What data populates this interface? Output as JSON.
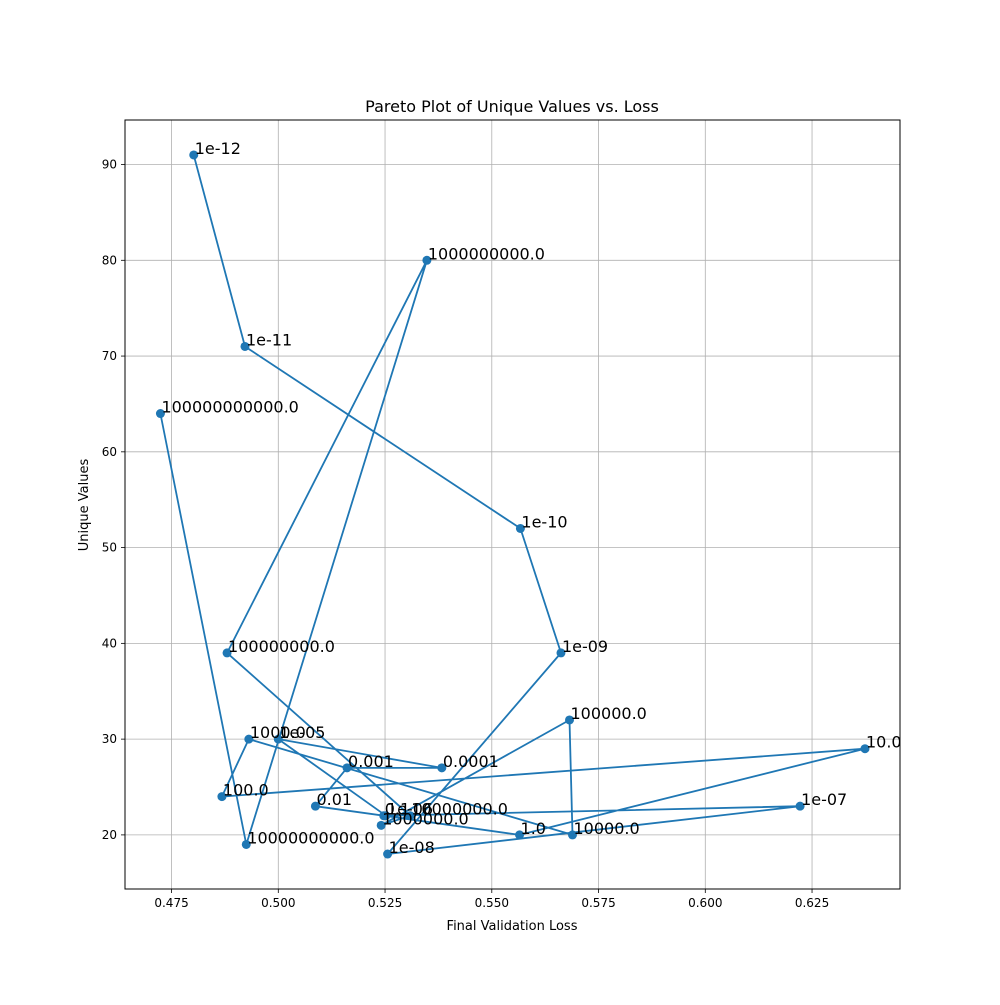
{
  "chart_data": {
    "type": "line",
    "title": "Pareto Plot of Unique Values vs. Loss",
    "xlabel": "Final Validation Loss",
    "ylabel": "Unique Values",
    "xlim": [
      0.4641,
      0.6456
    ],
    "ylim": [
      14.35,
      94.65
    ],
    "xticks": [
      0.475,
      0.5,
      0.525,
      0.55,
      0.575,
      0.6,
      0.625
    ],
    "xtick_labels": [
      "0.475",
      "0.500",
      "0.525",
      "0.550",
      "0.575",
      "0.600",
      "0.625"
    ],
    "yticks": [
      20,
      30,
      40,
      50,
      60,
      70,
      80,
      90
    ],
    "ytick_labels": [
      "20",
      "30",
      "40",
      "50",
      "60",
      "70",
      "80",
      "90"
    ],
    "grid": true,
    "color": "#1f77b4",
    "points": [
      {
        "label": "1e-12",
        "x": 0.4802,
        "y": 91
      },
      {
        "label": "1e-11",
        "x": 0.4922,
        "y": 71
      },
      {
        "label": "1e-10",
        "x": 0.5567,
        "y": 52
      },
      {
        "label": "1e-09",
        "x": 0.5662,
        "y": 39
      },
      {
        "label": "1e-08",
        "x": 0.5256,
        "y": 18
      },
      {
        "label": "1e-07",
        "x": 0.6222,
        "y": 23
      },
      {
        "label": "1e-06",
        "x": 0.5252,
        "y": 22
      },
      {
        "label": "1e-05",
        "x": 0.5,
        "y": 30
      },
      {
        "label": "0.0001",
        "x": 0.5383,
        "y": 27
      },
      {
        "label": "0.001",
        "x": 0.5161,
        "y": 27
      },
      {
        "label": "0.01",
        "x": 0.5087,
        "y": 23
      },
      {
        "label": "0.1",
        "x": 0.5247,
        "y": 22
      },
      {
        "label": "1.0",
        "x": 0.5565,
        "y": 20
      },
      {
        "label": "10.0",
        "x": 0.6374,
        "y": 29
      },
      {
        "label": "100.0",
        "x": 0.4868,
        "y": 24
      },
      {
        "label": "1000.0",
        "x": 0.4931,
        "y": 30
      },
      {
        "label": "10000.0",
        "x": 0.5689,
        "y": 20
      },
      {
        "label": "100000.0",
        "x": 0.5682,
        "y": 32
      },
      {
        "label": "1000000.0",
        "x": 0.5241,
        "y": 21
      },
      {
        "label": "10000000.0",
        "x": 0.5309,
        "y": 22
      },
      {
        "label": "100000000.0",
        "x": 0.488,
        "y": 39
      },
      {
        "label": "1000000000.0",
        "x": 0.5348,
        "y": 80
      },
      {
        "label": "10000000000.0",
        "x": 0.4925,
        "y": 19
      },
      {
        "label": "100000000000.0",
        "x": 0.4724,
        "y": 64
      }
    ]
  }
}
